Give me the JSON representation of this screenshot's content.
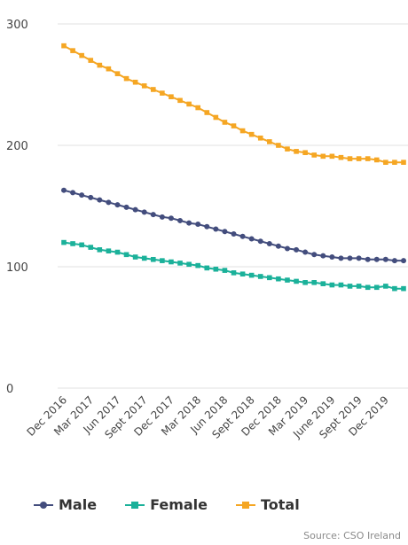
{
  "chart_data": {
    "type": "line",
    "title": "",
    "xlabel": "",
    "ylabel": "",
    "ylim": [
      0,
      300
    ],
    "yticks": [
      0,
      100,
      200,
      300
    ],
    "grid": "horizontal",
    "legend_position": "bottom",
    "x_tick_labels": [
      "Dec 2016",
      "Mar 2017",
      "Jun 2017",
      "Sept 2017",
      "Dec 2017",
      "Mar 2018",
      "Jun 2018",
      "Sept 2018",
      "Dec 2018",
      "Mar 2019",
      "June 2019",
      "Sept 2019",
      "Dec 2019"
    ],
    "series": [
      {
        "name": "Male",
        "color": "#434d7d",
        "marker": "circle",
        "values": [
          163,
          161,
          159,
          157,
          155,
          153,
          151,
          149,
          147,
          145,
          143,
          141,
          140,
          138,
          136,
          135,
          133,
          131,
          129,
          127,
          125,
          123,
          121,
          119,
          117,
          115,
          114,
          112,
          110,
          109,
          108,
          107,
          107,
          107,
          106,
          106,
          106,
          105,
          105
        ]
      },
      {
        "name": "Female",
        "color": "#1bb19a",
        "marker": "square",
        "values": [
          120,
          119,
          118,
          116,
          114,
          113,
          112,
          110,
          108,
          107,
          106,
          105,
          104,
          103,
          102,
          101,
          99,
          98,
          97,
          95,
          94,
          93,
          92,
          91,
          90,
          89,
          88,
          87,
          87,
          86,
          85,
          85,
          84,
          84,
          83,
          83,
          84,
          82,
          82
        ]
      },
      {
        "name": "Total",
        "color": "#f5a623",
        "marker": "square",
        "values": [
          282,
          278,
          274,
          270,
          266,
          263,
          259,
          255,
          252,
          249,
          246,
          243,
          240,
          237,
          234,
          231,
          227,
          223,
          219,
          216,
          212,
          209,
          206,
          203,
          200,
          197,
          195,
          194,
          192,
          191,
          191,
          190,
          189,
          189,
          189,
          188,
          186,
          186,
          186
        ]
      }
    ]
  },
  "source_text": "Source: CSO Ireland"
}
